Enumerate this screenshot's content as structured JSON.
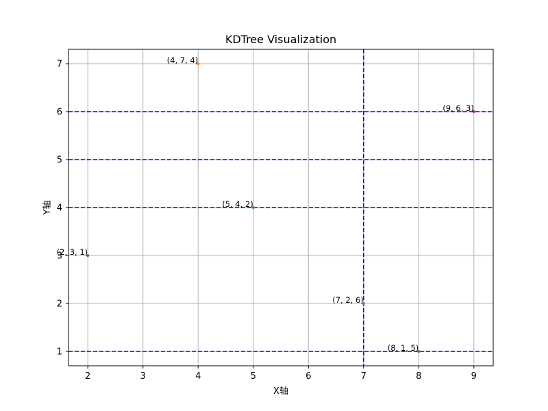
{
  "chart_data": {
    "type": "scatter",
    "title": "KDTree Visualization",
    "xlabel": "X轴",
    "ylabel": "Y轴",
    "xlim": [
      1.65,
      9.35
    ],
    "ylim": [
      0.7,
      7.3
    ],
    "x_ticks": [
      2,
      3,
      4,
      5,
      6,
      7,
      8,
      9
    ],
    "y_ticks": [
      1,
      2,
      3,
      4,
      5,
      6,
      7
    ],
    "grid": true,
    "points": [
      {
        "x": 2,
        "y": 3,
        "z": 1,
        "label": "(2, 3, 1)",
        "color": "#1f77b4"
      },
      {
        "x": 5,
        "y": 4,
        "z": 2,
        "label": "(5, 4, 2)",
        "color": "#2ca02c"
      },
      {
        "x": 9,
        "y": 6,
        "z": 3,
        "label": "(9, 6, 3)",
        "color": "#d62728"
      },
      {
        "x": 4,
        "y": 7,
        "z": 4,
        "label": "(4, 7, 4)",
        "color": "#ff7f0e"
      },
      {
        "x": 8,
        "y": 1,
        "z": 5,
        "label": "(8, 1, 5)",
        "color": "#8c564b"
      },
      {
        "x": 7,
        "y": 2,
        "z": 6,
        "label": "(7, 2, 6)",
        "color": "#9467bd"
      }
    ],
    "split_lines": [
      {
        "orientation": "vertical",
        "value": 7
      },
      {
        "orientation": "horizontal",
        "value": 6
      },
      {
        "orientation": "horizontal",
        "value": 5
      },
      {
        "orientation": "horizontal",
        "value": 4
      },
      {
        "orientation": "horizontal",
        "value": 1
      }
    ],
    "colors": {
      "split_line": "#0000ff",
      "grid": "#b0b0b0",
      "axes": "#000000"
    }
  }
}
